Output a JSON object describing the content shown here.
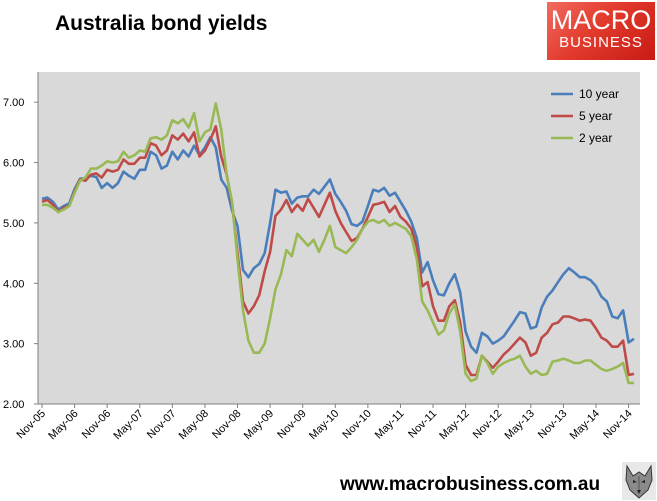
{
  "header": {
    "title": "Australia bond yields"
  },
  "logo": {
    "line1": "MACRO",
    "line2": "BUSINESS"
  },
  "footer": {
    "website": "www.macrobusiness.com.au"
  },
  "colors": {
    "plot_bg": "#d9d9d9",
    "ten_year": "#4a7ebb",
    "five_year": "#be4b48",
    "two_year": "#98b954",
    "logo_red": "#e23a2c"
  },
  "icons": {
    "wolf": "wolf-head-icon"
  },
  "chart_data": {
    "type": "line",
    "title": "Australia bond yields",
    "xlabel": "",
    "ylabel": "",
    "ylim": [
      2.0,
      7.5
    ],
    "y_ticks": [
      "2.00",
      "3.00",
      "4.00",
      "5.00",
      "6.00",
      "7.00"
    ],
    "y_tick_values": [
      2,
      3,
      4,
      5,
      6,
      7
    ],
    "x_tick_labels": [
      "Nov-05",
      "May-06",
      "Nov-06",
      "May-07",
      "Nov-07",
      "May-08",
      "Nov-08",
      "May-09",
      "Nov-09",
      "May-10",
      "Nov-10",
      "May-11",
      "Nov-11",
      "May-12",
      "Nov-12",
      "May-13",
      "Nov-13",
      "May-14",
      "Nov-14"
    ],
    "x_tick_index": [
      0,
      6,
      12,
      18,
      24,
      30,
      36,
      42,
      48,
      54,
      60,
      66,
      72,
      78,
      84,
      90,
      96,
      102,
      108
    ],
    "x_start": "Nov-05",
    "grid": false,
    "legend": "top-right",
    "series": [
      {
        "name": "10 year",
        "color": "#4a7ebb",
        "values": [
          5.4,
          5.42,
          5.35,
          5.22,
          5.28,
          5.32,
          5.56,
          5.73,
          5.74,
          5.78,
          5.76,
          5.58,
          5.66,
          5.58,
          5.66,
          5.85,
          5.78,
          5.73,
          5.88,
          5.88,
          6.18,
          6.12,
          5.9,
          5.95,
          6.18,
          6.05,
          6.2,
          6.1,
          6.28,
          6.12,
          6.25,
          6.42,
          6.25,
          5.72,
          5.58,
          5.2,
          4.95,
          4.22,
          4.1,
          4.25,
          4.32,
          4.5,
          5.0,
          5.55,
          5.5,
          5.52,
          5.32,
          5.42,
          5.44,
          5.44,
          5.55,
          5.48,
          5.6,
          5.72,
          5.48,
          5.35,
          5.2,
          4.98,
          4.95,
          5.02,
          5.28,
          5.55,
          5.52,
          5.58,
          5.45,
          5.5,
          5.35,
          5.2,
          5.02,
          4.75,
          4.18,
          4.35,
          4.05,
          3.82,
          3.8,
          4.0,
          4.15,
          3.85,
          3.2,
          2.95,
          2.85,
          3.18,
          3.12,
          3.0,
          3.05,
          3.12,
          3.25,
          3.38,
          3.52,
          3.5,
          3.25,
          3.28,
          3.6,
          3.78,
          3.88,
          4.02,
          4.15,
          4.25,
          4.18,
          4.1,
          4.1,
          4.05,
          3.95,
          3.78,
          3.7,
          3.45,
          3.42,
          3.55,
          3.02,
          3.08
        ]
      },
      {
        "name": "5 year",
        "color": "#be4b48",
        "values": [
          5.35,
          5.38,
          5.3,
          5.18,
          5.25,
          5.28,
          5.52,
          5.72,
          5.7,
          5.8,
          5.82,
          5.75,
          5.88,
          5.85,
          5.88,
          6.05,
          5.98,
          5.98,
          6.08,
          6.08,
          6.32,
          6.28,
          6.12,
          6.2,
          6.45,
          6.38,
          6.48,
          6.35,
          6.5,
          6.1,
          6.2,
          6.38,
          6.6,
          6.1,
          5.8,
          5.32,
          4.5,
          3.7,
          3.5,
          3.62,
          3.8,
          4.2,
          4.52,
          5.12,
          5.22,
          5.38,
          5.18,
          5.3,
          5.2,
          5.4,
          5.25,
          5.1,
          5.3,
          5.5,
          5.2,
          5.0,
          4.85,
          4.7,
          4.75,
          4.9,
          5.1,
          5.3,
          5.32,
          5.35,
          5.18,
          5.28,
          5.1,
          5.02,
          4.9,
          4.6,
          3.95,
          4.02,
          3.62,
          3.38,
          3.38,
          3.62,
          3.72,
          3.35,
          2.65,
          2.48,
          2.48,
          2.8,
          2.7,
          2.6,
          2.7,
          2.82,
          2.9,
          3.0,
          3.1,
          3.02,
          2.8,
          2.85,
          3.1,
          3.18,
          3.32,
          3.35,
          3.45,
          3.45,
          3.42,
          3.38,
          3.4,
          3.38,
          3.25,
          3.1,
          3.05,
          2.95,
          2.95,
          3.05,
          2.48,
          2.5
        ]
      },
      {
        "name": "2 year",
        "color": "#98b954",
        "values": [
          5.3,
          5.3,
          5.25,
          5.18,
          5.22,
          5.28,
          5.5,
          5.7,
          5.75,
          5.9,
          5.9,
          5.95,
          6.02,
          6.0,
          6.02,
          6.18,
          6.08,
          6.12,
          6.2,
          6.18,
          6.4,
          6.42,
          6.38,
          6.45,
          6.7,
          6.65,
          6.72,
          6.58,
          6.82,
          6.35,
          6.5,
          6.55,
          6.98,
          6.55,
          5.8,
          5.35,
          4.4,
          3.55,
          3.05,
          2.85,
          2.85,
          3.0,
          3.42,
          3.9,
          4.15,
          4.55,
          4.45,
          4.82,
          4.72,
          4.62,
          4.72,
          4.52,
          4.72,
          4.95,
          4.6,
          4.55,
          4.5,
          4.6,
          4.72,
          4.9,
          5.02,
          5.05,
          5.0,
          5.05,
          4.95,
          5.0,
          4.95,
          4.9,
          4.78,
          4.4,
          3.7,
          3.55,
          3.35,
          3.15,
          3.22,
          3.5,
          3.65,
          3.2,
          2.5,
          2.38,
          2.42,
          2.8,
          2.68,
          2.5,
          2.62,
          2.68,
          2.72,
          2.75,
          2.8,
          2.62,
          2.5,
          2.55,
          2.48,
          2.5,
          2.7,
          2.72,
          2.75,
          2.72,
          2.68,
          2.68,
          2.72,
          2.72,
          2.65,
          2.58,
          2.55,
          2.58,
          2.62,
          2.68,
          2.35,
          2.35
        ]
      }
    ]
  }
}
